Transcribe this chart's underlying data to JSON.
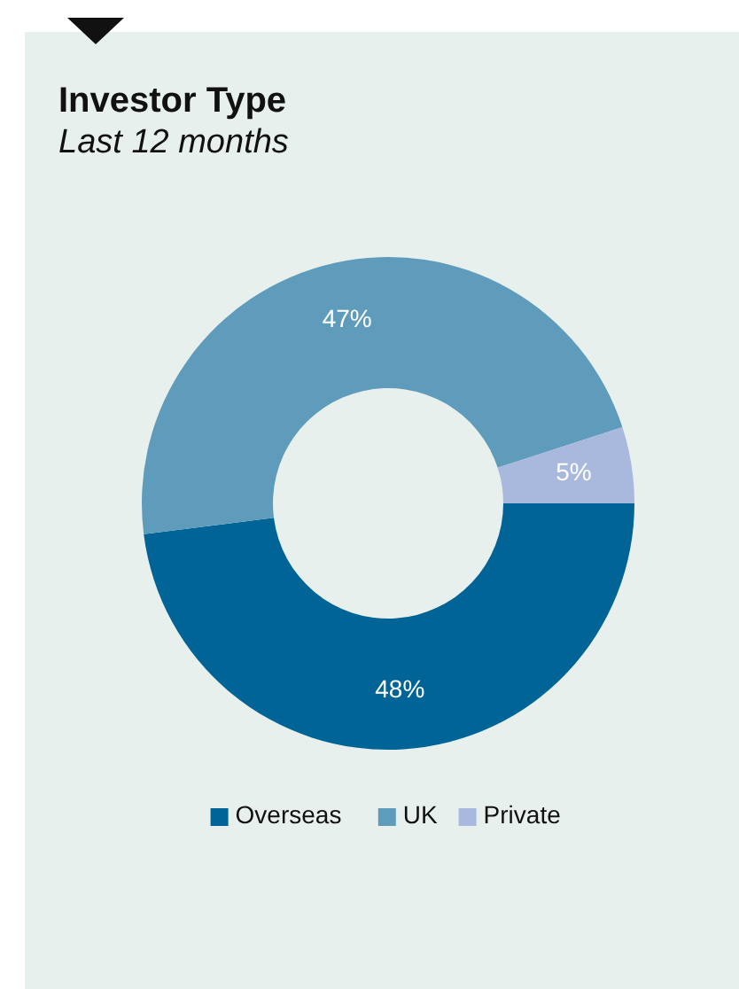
{
  "chart_data": {
    "type": "donut",
    "title": "Investor Type",
    "subtitle": "Last 12 months",
    "categories": [
      "Overseas",
      "UK",
      "Private"
    ],
    "values": [
      48,
      47,
      5
    ],
    "colors": [
      "#006496",
      "#5f9bba",
      "#a9b8dd"
    ],
    "value_labels": [
      "48%",
      "47%",
      "5%"
    ],
    "legend": "bottom"
  }
}
